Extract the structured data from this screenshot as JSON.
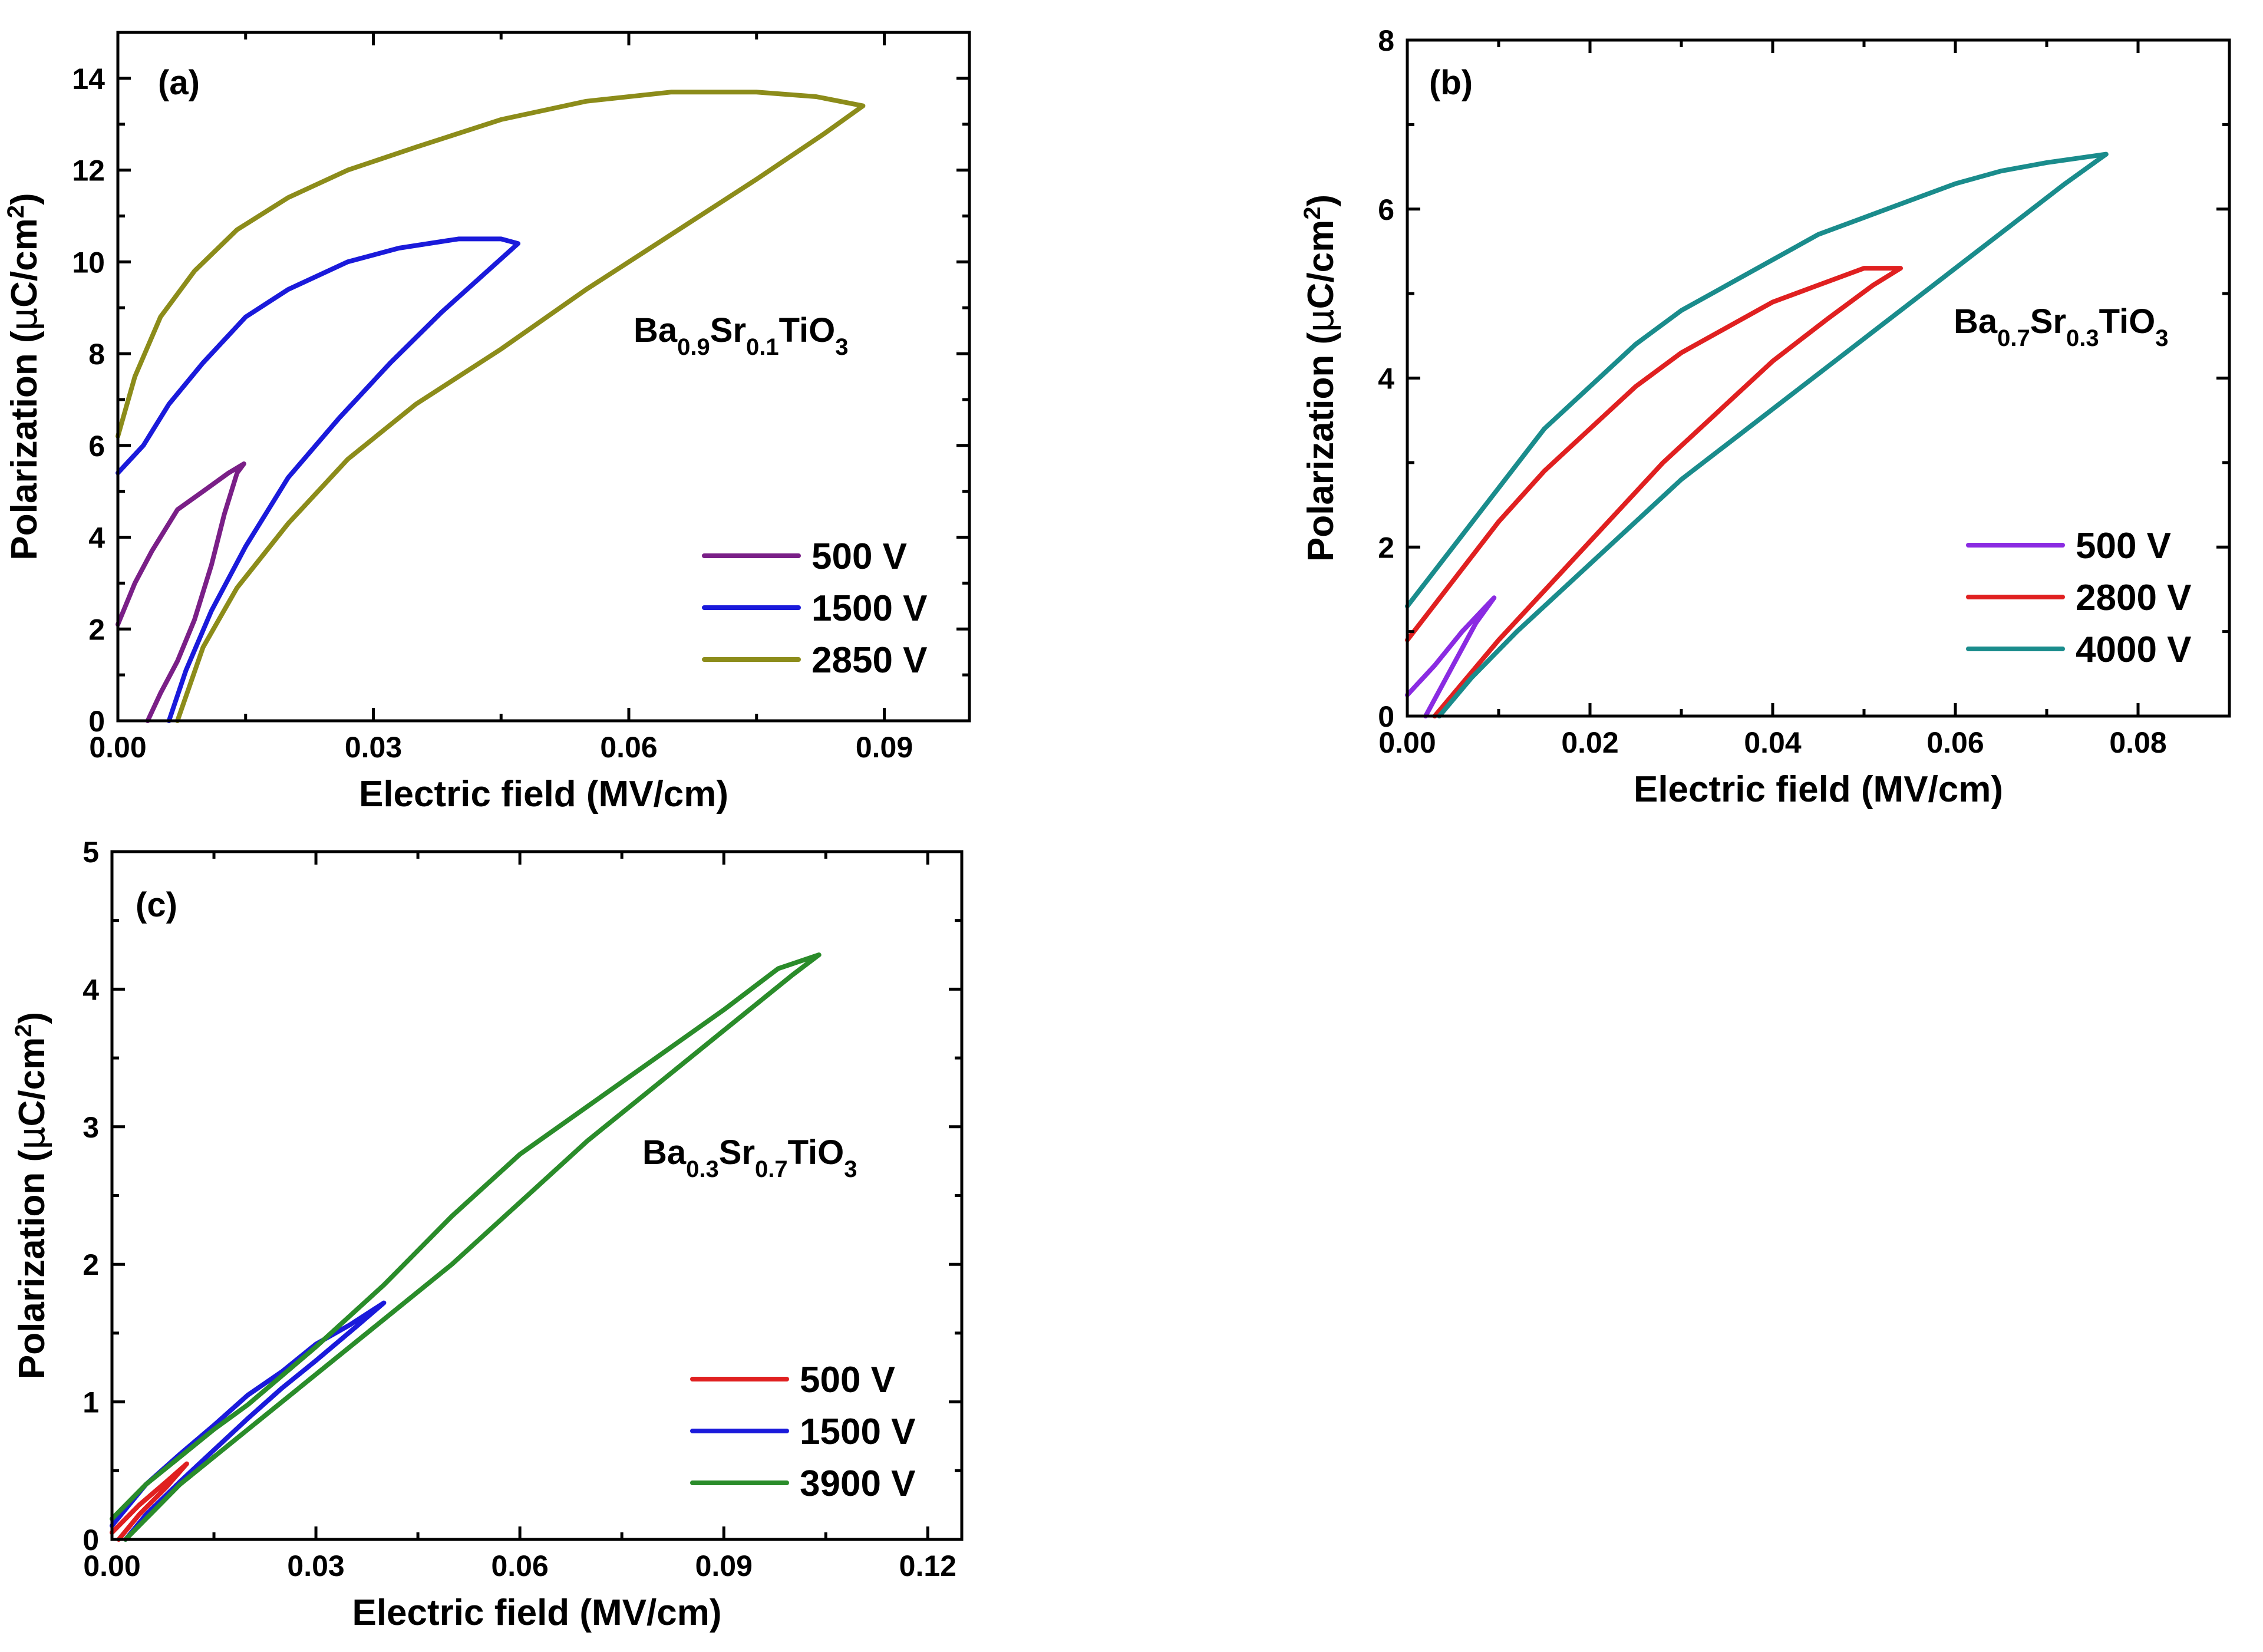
{
  "chart_data": [
    {
      "type": "line",
      "panel_label": "(a)",
      "composition": {
        "base": "Ba",
        "a": "0.9",
        "mid": "Sr",
        "b": "0.1",
        "end": "TiO",
        "c": "3"
      },
      "xlabel": "Electric field (MV/cm)",
      "ylabel": {
        "pre": "Polarization (",
        "mu": "μ",
        "unit": "C/cm",
        "sup": "2",
        "post": ")"
      },
      "xlim": [
        0,
        0.1
      ],
      "ylim": [
        0,
        15
      ],
      "xticks": [
        0,
        0.03,
        0.06,
        0.09
      ],
      "xtick_labels": [
        "0.00",
        "0.03",
        "0.06",
        "0.09"
      ],
      "yticks": [
        0,
        2,
        4,
        6,
        8,
        10,
        12,
        14
      ],
      "ytick_labels": [
        "0",
        "2",
        "4",
        "6",
        "8",
        "10",
        "12",
        "14"
      ],
      "legend_position": "bottom-right",
      "series": [
        {
          "name": "500 V",
          "color": "#7a1f87",
          "x": [
            0.0,
            0.002,
            0.004,
            0.007,
            0.01,
            0.013,
            0.0148,
            0.014,
            0.0125,
            0.011,
            0.009,
            0.007,
            0.005,
            0.0035
          ],
          "y": [
            2.1,
            3.0,
            3.7,
            4.6,
            5.0,
            5.4,
            5.6,
            5.4,
            4.5,
            3.4,
            2.2,
            1.3,
            0.6,
            0.0
          ]
        },
        {
          "name": "1500 V",
          "color": "#1a1adb",
          "x": [
            0.0,
            0.003,
            0.006,
            0.01,
            0.015,
            0.02,
            0.027,
            0.033,
            0.04,
            0.045,
            0.047,
            0.044,
            0.038,
            0.032,
            0.026,
            0.02,
            0.015,
            0.011,
            0.008,
            0.006
          ],
          "y": [
            5.4,
            6.0,
            6.9,
            7.8,
            8.8,
            9.4,
            10.0,
            10.3,
            10.5,
            10.5,
            10.4,
            9.9,
            8.9,
            7.8,
            6.6,
            5.3,
            3.8,
            2.4,
            1.1,
            0.0
          ]
        },
        {
          "name": "2850 V",
          "color": "#8c8c1a",
          "x": [
            0.0,
            0.002,
            0.005,
            0.009,
            0.014,
            0.02,
            0.027,
            0.035,
            0.045,
            0.055,
            0.065,
            0.075,
            0.082,
            0.0875,
            0.083,
            0.075,
            0.065,
            0.055,
            0.045,
            0.035,
            0.027,
            0.02,
            0.014,
            0.01,
            0.007
          ],
          "y": [
            6.2,
            7.5,
            8.8,
            9.8,
            10.7,
            11.4,
            12.0,
            12.5,
            13.1,
            13.5,
            13.7,
            13.7,
            13.6,
            13.4,
            12.8,
            11.8,
            10.6,
            9.4,
            8.1,
            6.9,
            5.7,
            4.3,
            2.9,
            1.6,
            0.0
          ]
        }
      ]
    },
    {
      "type": "line",
      "panel_label": "(b)",
      "composition": {
        "base": "Ba",
        "a": "0.7",
        "mid": "Sr",
        "b": "0.3",
        "end": "TiO",
        "c": "3"
      },
      "xlabel": "Electric field (MV/cm)",
      "ylabel": {
        "pre": "Polarization (",
        "mu": "μ",
        "unit": "C/cm",
        "sup": "2",
        "post": ")"
      },
      "xlim": [
        0,
        0.09
      ],
      "ylim": [
        0,
        8
      ],
      "xticks": [
        0,
        0.02,
        0.04,
        0.06,
        0.08
      ],
      "xtick_labels": [
        "0.00",
        "0.02",
        "0.04",
        "0.06",
        "0.08"
      ],
      "yticks": [
        0,
        2,
        4,
        6,
        8
      ],
      "ytick_labels": [
        "0",
        "2",
        "4",
        "6",
        "8"
      ],
      "legend_position": "bottom-right",
      "series": [
        {
          "name": "500 V",
          "color": "#8a2be2",
          "x": [
            0.0,
            0.003,
            0.006,
            0.0095,
            0.0075,
            0.005,
            0.002
          ],
          "y": [
            0.25,
            0.6,
            1.0,
            1.4,
            1.1,
            0.6,
            0.0
          ]
        },
        {
          "name": "2800 V",
          "color": "#e02020",
          "x": [
            0.0,
            0.005,
            0.01,
            0.015,
            0.02,
            0.025,
            0.03,
            0.035,
            0.04,
            0.045,
            0.05,
            0.054,
            0.051,
            0.046,
            0.04,
            0.034,
            0.028,
            0.022,
            0.016,
            0.01,
            0.0065,
            0.003
          ],
          "y": [
            0.9,
            1.6,
            2.3,
            2.9,
            3.4,
            3.9,
            4.3,
            4.6,
            4.9,
            5.1,
            5.3,
            5.3,
            5.1,
            4.7,
            4.2,
            3.6,
            3.0,
            2.3,
            1.6,
            0.9,
            0.45,
            0.0
          ]
        },
        {
          "name": "4000 V",
          "color": "#1a8c8c",
          "x": [
            0.0,
            0.005,
            0.01,
            0.015,
            0.02,
            0.025,
            0.03,
            0.035,
            0.04,
            0.045,
            0.05,
            0.055,
            0.06,
            0.065,
            0.07,
            0.0765,
            0.072,
            0.066,
            0.06,
            0.054,
            0.048,
            0.042,
            0.036,
            0.03,
            0.024,
            0.018,
            0.012,
            0.007,
            0.0035
          ],
          "y": [
            1.3,
            2.0,
            2.7,
            3.4,
            3.9,
            4.4,
            4.8,
            5.1,
            5.4,
            5.7,
            5.9,
            6.1,
            6.3,
            6.45,
            6.55,
            6.65,
            6.3,
            5.8,
            5.3,
            4.8,
            4.3,
            3.8,
            3.3,
            2.8,
            2.2,
            1.6,
            1.0,
            0.45,
            0.0
          ]
        }
      ]
    },
    {
      "type": "line",
      "panel_label": "(c)",
      "composition": {
        "base": "Ba",
        "a": "0.3",
        "mid": "Sr",
        "b": "0.7",
        "end": "TiO",
        "c": "3"
      },
      "xlabel": "Electric field (MV/cm)",
      "ylabel": {
        "pre": "Polarization (",
        "mu": "μ",
        "unit": "C/cm",
        "sup": "2",
        "post": ")"
      },
      "xlim": [
        0,
        0.125
      ],
      "ylim": [
        0,
        5
      ],
      "xticks": [
        0,
        0.03,
        0.06,
        0.09,
        0.12
      ],
      "xtick_labels": [
        "0.00",
        "0.03",
        "0.06",
        "0.09",
        "0.12"
      ],
      "yticks": [
        0,
        1,
        2,
        3,
        4,
        5
      ],
      "ytick_labels": [
        "0",
        "1",
        "2",
        "3",
        "4",
        "5"
      ],
      "legend_position": "bottom-right",
      "series": [
        {
          "name": "500 V",
          "color": "#e02020",
          "x": [
            0.0,
            0.004,
            0.008,
            0.011,
            0.008,
            0.004,
            0.001
          ],
          "y": [
            0.05,
            0.25,
            0.42,
            0.55,
            0.38,
            0.18,
            0.0
          ]
        },
        {
          "name": "1500 V",
          "color": "#1a1adb",
          "x": [
            0.0,
            0.005,
            0.01,
            0.015,
            0.02,
            0.025,
            0.03,
            0.035,
            0.04,
            0.036,
            0.03,
            0.025,
            0.02,
            0.015,
            0.01,
            0.005,
            0.002
          ],
          "y": [
            0.1,
            0.4,
            0.62,
            0.83,
            1.05,
            1.22,
            1.42,
            1.56,
            1.72,
            1.55,
            1.3,
            1.1,
            0.88,
            0.65,
            0.42,
            0.18,
            0.0
          ]
        },
        {
          "name": "3900 V",
          "color": "#2a8c2a",
          "x": [
            0.0,
            0.005,
            0.01,
            0.015,
            0.02,
            0.03,
            0.04,
            0.05,
            0.06,
            0.07,
            0.08,
            0.09,
            0.098,
            0.104,
            0.1,
            0.09,
            0.08,
            0.07,
            0.06,
            0.05,
            0.04,
            0.03,
            0.02,
            0.01,
            0.005,
            0.002
          ],
          "y": [
            0.15,
            0.4,
            0.6,
            0.8,
            0.98,
            1.4,
            1.85,
            2.35,
            2.8,
            3.15,
            3.5,
            3.85,
            4.15,
            4.25,
            4.1,
            3.7,
            3.3,
            2.9,
            2.45,
            2.0,
            1.6,
            1.2,
            0.8,
            0.4,
            0.15,
            0.0
          ]
        }
      ]
    }
  ]
}
